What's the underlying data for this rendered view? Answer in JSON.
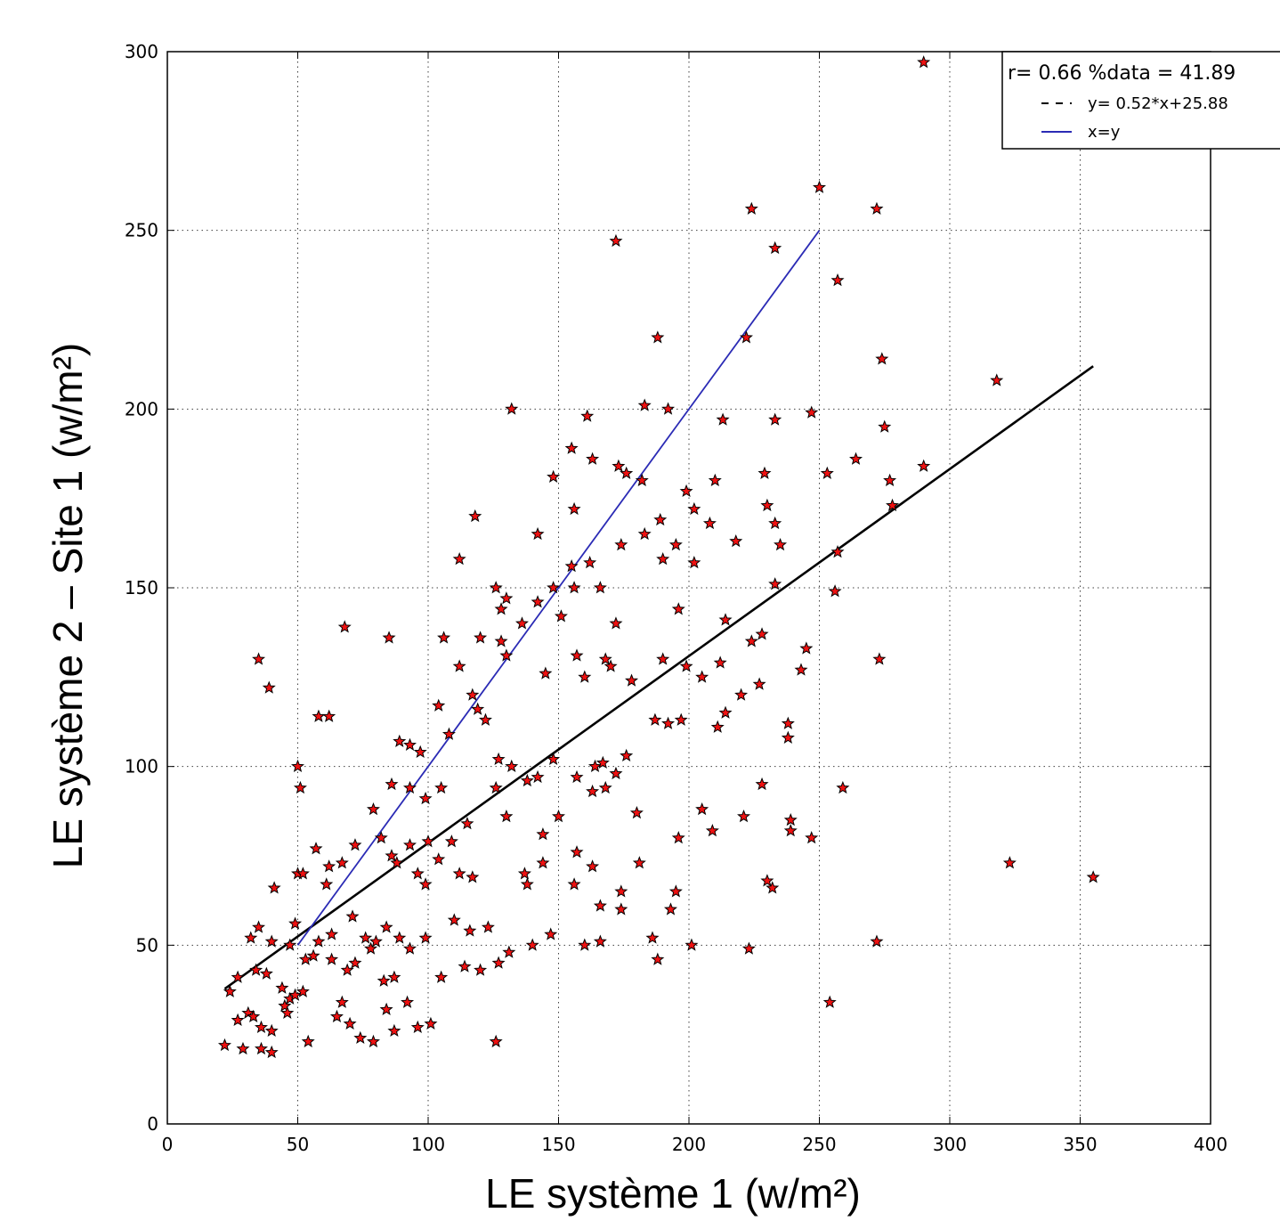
{
  "chart_data": {
    "type": "scatter",
    "xlabel": "LE système 1 (w/m²)",
    "ylabel": "LE système 2 – Site 1 (w/m²)",
    "xlim": [
      0,
      400
    ],
    "ylim": [
      0,
      300
    ],
    "xticks": [
      0,
      50,
      100,
      150,
      200,
      250,
      300,
      350,
      400
    ],
    "yticks": [
      0,
      50,
      100,
      150,
      200,
      250,
      300
    ],
    "xtick_labels": [
      "0",
      "50",
      "100",
      "150",
      "200",
      "250",
      "300",
      "350",
      "400"
    ],
    "ytick_labels": [
      "0",
      "50",
      "100",
      "150",
      "200",
      "250",
      "300"
    ],
    "grid": true,
    "legend_position": "top-right",
    "legend": {
      "title": "r= 0.66  %data = 41.89",
      "entries": [
        {
          "label": "y= 0.52*x+25.88",
          "style": "dashed",
          "color": "#000000"
        },
        {
          "label": "x=y",
          "style": "solid",
          "color": "#2b2bb5"
        }
      ]
    },
    "marker_color": "#ee1111",
    "series": [
      {
        "type": "line",
        "color": "#000000",
        "x": [
          22,
          355
        ],
        "y": [
          37.8,
          212.0
        ]
      },
      {
        "type": "line",
        "color": "#2b2bb5",
        "x": [
          50,
          250
        ],
        "y": [
          50,
          250
        ]
      },
      {
        "type": "scatter",
        "points": [
          [
            290,
            297
          ],
          [
            250,
            262
          ],
          [
            224,
            256
          ],
          [
            272,
            256
          ],
          [
            172,
            247
          ],
          [
            233,
            245
          ],
          [
            257,
            236
          ],
          [
            188,
            220
          ],
          [
            222,
            220
          ],
          [
            274,
            214
          ],
          [
            318,
            208
          ],
          [
            132,
            200
          ],
          [
            183,
            201
          ],
          [
            192,
            200
          ],
          [
            161,
            198
          ],
          [
            213,
            197
          ],
          [
            233,
            197
          ],
          [
            247,
            199
          ],
          [
            275,
            195
          ],
          [
            148,
            181
          ],
          [
            155,
            189
          ],
          [
            163,
            186
          ],
          [
            173,
            184
          ],
          [
            176,
            182
          ],
          [
            182,
            180
          ],
          [
            199,
            177
          ],
          [
            210,
            180
          ],
          [
            229,
            182
          ],
          [
            253,
            182
          ],
          [
            264,
            186
          ],
          [
            277,
            180
          ],
          [
            290,
            184
          ],
          [
            156,
            172
          ],
          [
            202,
            172
          ],
          [
            189,
            169
          ],
          [
            208,
            168
          ],
          [
            118,
            170
          ],
          [
            230,
            173
          ],
          [
            233,
            168
          ],
          [
            278,
            173
          ],
          [
            142,
            165
          ],
          [
            162,
            157
          ],
          [
            183,
            165
          ],
          [
            195,
            162
          ],
          [
            218,
            163
          ],
          [
            235,
            162
          ],
          [
            112,
            158
          ],
          [
            155,
            156
          ],
          [
            174,
            162
          ],
          [
            190,
            158
          ],
          [
            202,
            157
          ],
          [
            257,
            160
          ],
          [
            126,
            150
          ],
          [
            148,
            150
          ],
          [
            156,
            150
          ],
          [
            166,
            150
          ],
          [
            196,
            144
          ],
          [
            233,
            151
          ],
          [
            256,
            149
          ],
          [
            130,
            147
          ],
          [
            128,
            144
          ],
          [
            142,
            146
          ],
          [
            151,
            142
          ],
          [
            172,
            140
          ],
          [
            214,
            141
          ],
          [
            228,
            137
          ],
          [
            68,
            139
          ],
          [
            85,
            136
          ],
          [
            106,
            136
          ],
          [
            120,
            136
          ],
          [
            128,
            135
          ],
          [
            136,
            140
          ],
          [
            157,
            131
          ],
          [
            168,
            130
          ],
          [
            190,
            130
          ],
          [
            199,
            128
          ],
          [
            224,
            135
          ],
          [
            245,
            133
          ],
          [
            273,
            130
          ],
          [
            35,
            130
          ],
          [
            39,
            122
          ],
          [
            112,
            128
          ],
          [
            130,
            131
          ],
          [
            145,
            126
          ],
          [
            160,
            125
          ],
          [
            170,
            128
          ],
          [
            178,
            124
          ],
          [
            205,
            125
          ],
          [
            212,
            129
          ],
          [
            243,
            127
          ],
          [
            117,
            120
          ],
          [
            119,
            116
          ],
          [
            104,
            117
          ],
          [
            132,
            100
          ],
          [
            138,
            96
          ],
          [
            142,
            97
          ],
          [
            148,
            102
          ],
          [
            157,
            97
          ],
          [
            164,
            100
          ],
          [
            167,
            101
          ],
          [
            172,
            98
          ],
          [
            176,
            103
          ],
          [
            187,
            113
          ],
          [
            192,
            112
          ],
          [
            197,
            113
          ],
          [
            211,
            111
          ],
          [
            214,
            115
          ],
          [
            220,
            120
          ],
          [
            227,
            123
          ],
          [
            238,
            112
          ],
          [
            238,
            108
          ],
          [
            58,
            114
          ],
          [
            62,
            114
          ],
          [
            89,
            107
          ],
          [
            93,
            106
          ],
          [
            97,
            104
          ],
          [
            108,
            109
          ],
          [
            122,
            113
          ],
          [
            127,
            102
          ],
          [
            130,
            86
          ],
          [
            144,
            81
          ],
          [
            150,
            86
          ],
          [
            163,
            93
          ],
          [
            168,
            94
          ],
          [
            180,
            87
          ],
          [
            196,
            80
          ],
          [
            209,
            82
          ],
          [
            221,
            86
          ],
          [
            228,
            95
          ],
          [
            239,
            85
          ],
          [
            259,
            94
          ],
          [
            50,
            100
          ],
          [
            51,
            94
          ],
          [
            86,
            95
          ],
          [
            93,
            94
          ],
          [
            99,
            91
          ],
          [
            105,
            94
          ],
          [
            115,
            84
          ],
          [
            126,
            94
          ],
          [
            100,
            79
          ],
          [
            104,
            74
          ],
          [
            109,
            79
          ],
          [
            137,
            70
          ],
          [
            144,
            73
          ],
          [
            157,
            76
          ],
          [
            163,
            72
          ],
          [
            174,
            65
          ],
          [
            181,
            73
          ],
          [
            195,
            65
          ],
          [
            205,
            88
          ],
          [
            239,
            82
          ],
          [
            247,
            80
          ],
          [
            79,
            88
          ],
          [
            82,
            80
          ],
          [
            86,
            75
          ],
          [
            93,
            78
          ],
          [
            96,
            70
          ],
          [
            72,
            78
          ],
          [
            57,
            77
          ],
          [
            67,
            73
          ],
          [
            62,
            72
          ],
          [
            50,
            70
          ],
          [
            52,
            70
          ],
          [
            41,
            66
          ],
          [
            61,
            67
          ],
          [
            88,
            73
          ],
          [
            99,
            67
          ],
          [
            112,
            70
          ],
          [
            117,
            69
          ],
          [
            138,
            67
          ],
          [
            156,
            67
          ],
          [
            166,
            61
          ],
          [
            174,
            60
          ],
          [
            193,
            60
          ],
          [
            230,
            68
          ],
          [
            232,
            66
          ],
          [
            323,
            73
          ],
          [
            355,
            69
          ],
          [
            49,
            56
          ],
          [
            35,
            55
          ],
          [
            32,
            52
          ],
          [
            40,
            51
          ],
          [
            47,
            50
          ],
          [
            58,
            51
          ],
          [
            63,
            53
          ],
          [
            71,
            58
          ],
          [
            76,
            52
          ],
          [
            80,
            51
          ],
          [
            84,
            55
          ],
          [
            89,
            52
          ],
          [
            93,
            49
          ],
          [
            99,
            52
          ],
          [
            110,
            57
          ],
          [
            116,
            54
          ],
          [
            123,
            55
          ],
          [
            131,
            48
          ],
          [
            140,
            50
          ],
          [
            147,
            53
          ],
          [
            160,
            50
          ],
          [
            166,
            51
          ],
          [
            186,
            52
          ],
          [
            201,
            50
          ],
          [
            223,
            49
          ],
          [
            272,
            51
          ],
          [
            53,
            46
          ],
          [
            34,
            43
          ],
          [
            38,
            42
          ],
          [
            56,
            47
          ],
          [
            63,
            46
          ],
          [
            69,
            43
          ],
          [
            72,
            45
          ],
          [
            78,
            49
          ],
          [
            83,
            40
          ],
          [
            87,
            41
          ],
          [
            105,
            41
          ],
          [
            114,
            44
          ],
          [
            120,
            43
          ],
          [
            127,
            45
          ],
          [
            188,
            46
          ],
          [
            24,
            37
          ],
          [
            27,
            41
          ],
          [
            44,
            38
          ],
          [
            45,
            33
          ],
          [
            47,
            35
          ],
          [
            49,
            36
          ],
          [
            52,
            37
          ],
          [
            67,
            34
          ],
          [
            84,
            32
          ],
          [
            92,
            34
          ],
          [
            101,
            28
          ],
          [
            27,
            29
          ],
          [
            31,
            31
          ],
          [
            33,
            30
          ],
          [
            36,
            27
          ],
          [
            40,
            26
          ],
          [
            46,
            31
          ],
          [
            70,
            28
          ],
          [
            74,
            24
          ],
          [
            79,
            23
          ],
          [
            87,
            26
          ],
          [
            96,
            27
          ],
          [
            254,
            34
          ],
          [
            126,
            23
          ],
          [
            22,
            22
          ],
          [
            29,
            21
          ],
          [
            36,
            21
          ],
          [
            40,
            20
          ],
          [
            54,
            23
          ],
          [
            65,
            30
          ]
        ]
      }
    ]
  }
}
